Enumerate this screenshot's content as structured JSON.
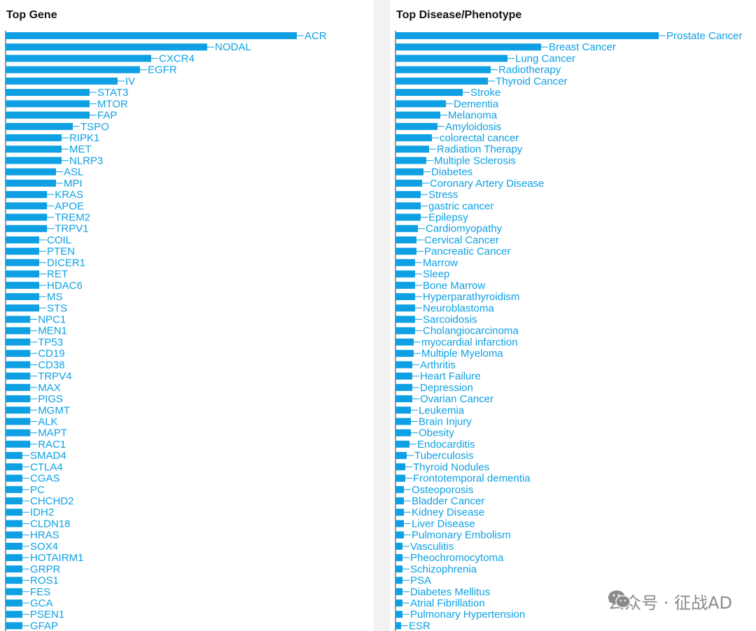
{
  "watermark": {
    "text": "公众号 · 征战AD",
    "icon": "wechat-icon",
    "color": "#8a8a8a"
  },
  "colors": {
    "bar": "#0ea0e3",
    "axis": "#333333"
  },
  "chart_data": [
    {
      "type": "bar",
      "orientation": "horizontal",
      "title": "Top Gene",
      "xlabel": "",
      "ylabel": "",
      "grid": false,
      "categories": [
        "ACR",
        "NODAL",
        "CXCR4",
        "EGFR",
        "IV",
        "STAT3",
        "MTOR",
        "FAP",
        "TSPO",
        "RIPK1",
        "MET",
        "NLRP3",
        "ASL",
        "MPI",
        "KRAS",
        "APOE",
        "TREM2",
        "TRPV1",
        "COIL",
        "PTEN",
        "DICER1",
        "RET",
        "HDAC6",
        "MS",
        "STS",
        "NPC1",
        "MEN1",
        "TP53",
        "CD19",
        "CD38",
        "TRPV4",
        "MAX",
        "PIGS",
        "MGMT",
        "ALK",
        "MAPT",
        "RAC1",
        "SMAD4",
        "CTLA4",
        "CGAS",
        "PC",
        "CHCHD2",
        "IDH2",
        "CLDN18",
        "HRAS",
        "SOX4",
        "HOTAIRM1",
        "GRPR",
        "ROS1",
        "FES",
        "GCA",
        "PSEN1",
        "GFAP"
      ],
      "values": [
        26,
        18,
        13,
        12,
        10,
        7.5,
        7.5,
        7.5,
        6,
        5,
        5,
        5,
        4.5,
        4.5,
        3.7,
        3.7,
        3.7,
        3.7,
        3,
        3,
        3,
        3,
        3,
        3,
        3,
        2.2,
        2.2,
        2.2,
        2.2,
        2.2,
        2.2,
        2.2,
        2.2,
        2.2,
        2.2,
        2.2,
        2.2,
        1.5,
        1.5,
        1.5,
        1.5,
        1.5,
        1.5,
        1.5,
        1.5,
        1.5,
        1.5,
        1.5,
        1.5,
        1.5,
        1.5,
        1.5,
        1.5
      ]
    },
    {
      "type": "bar",
      "orientation": "horizontal",
      "title": "Top Disease/Phenotype",
      "xlabel": "",
      "ylabel": "",
      "grid": false,
      "categories": [
        "Prostate Cancer",
        "Breast Cancer",
        "Lung Cancer",
        "Radiotherapy",
        "Thyroid Cancer",
        "Stroke",
        "Dementia",
        "Melanoma",
        "Amyloidosis",
        "colorectal cancer",
        "Radiation Therapy",
        "Multiple Sclerosis",
        "Diabetes",
        "Coronary Artery Disease",
        "Stress",
        "gastric cancer",
        "Epilepsy",
        "Cardiomyopathy",
        "Cervical Cancer",
        "Pancreatic Cancer",
        "Marrow",
        "Sleep",
        "Bone Marrow",
        "Hyperparathyroidism",
        "Neuroblastoma",
        "Sarcoidosis",
        "Cholangiocarcinoma",
        "myocardial infarction",
        "Multiple Myeloma",
        "Arthritis",
        "Heart Failure",
        "Depression",
        "Ovarian Cancer",
        "Leukemia",
        "Brain Injury",
        "Obesity",
        "Endocarditis",
        "Tuberculosis",
        "Thyroid Nodules",
        "Frontotemporal dementia",
        "Osteoporosis",
        "Bladder Cancer",
        "Kidney Disease",
        "Liver Disease",
        "Pulmonary Embolism",
        "Vasculitis",
        "Pheochromocytoma",
        "Schizophrenia",
        "PSA",
        "Diabetes Mellitus",
        "Atrial Fibrillation",
        "Pulmonary Hypertension",
        "ESR"
      ],
      "values": [
        94,
        52,
        40,
        34,
        33,
        24,
        18,
        16,
        15,
        13,
        12,
        11,
        10,
        9.5,
        9,
        9,
        9,
        8,
        7.5,
        7.5,
        7,
        7,
        7,
        7,
        7,
        7,
        7,
        6.5,
        6.5,
        6,
        6,
        6,
        6,
        5.5,
        5.5,
        5.5,
        5,
        4,
        3.5,
        3.5,
        3,
        3,
        3,
        3,
        3,
        2.5,
        2.5,
        2.5,
        2.5,
        2.5,
        2.5,
        2.5,
        2
      ]
    }
  ]
}
